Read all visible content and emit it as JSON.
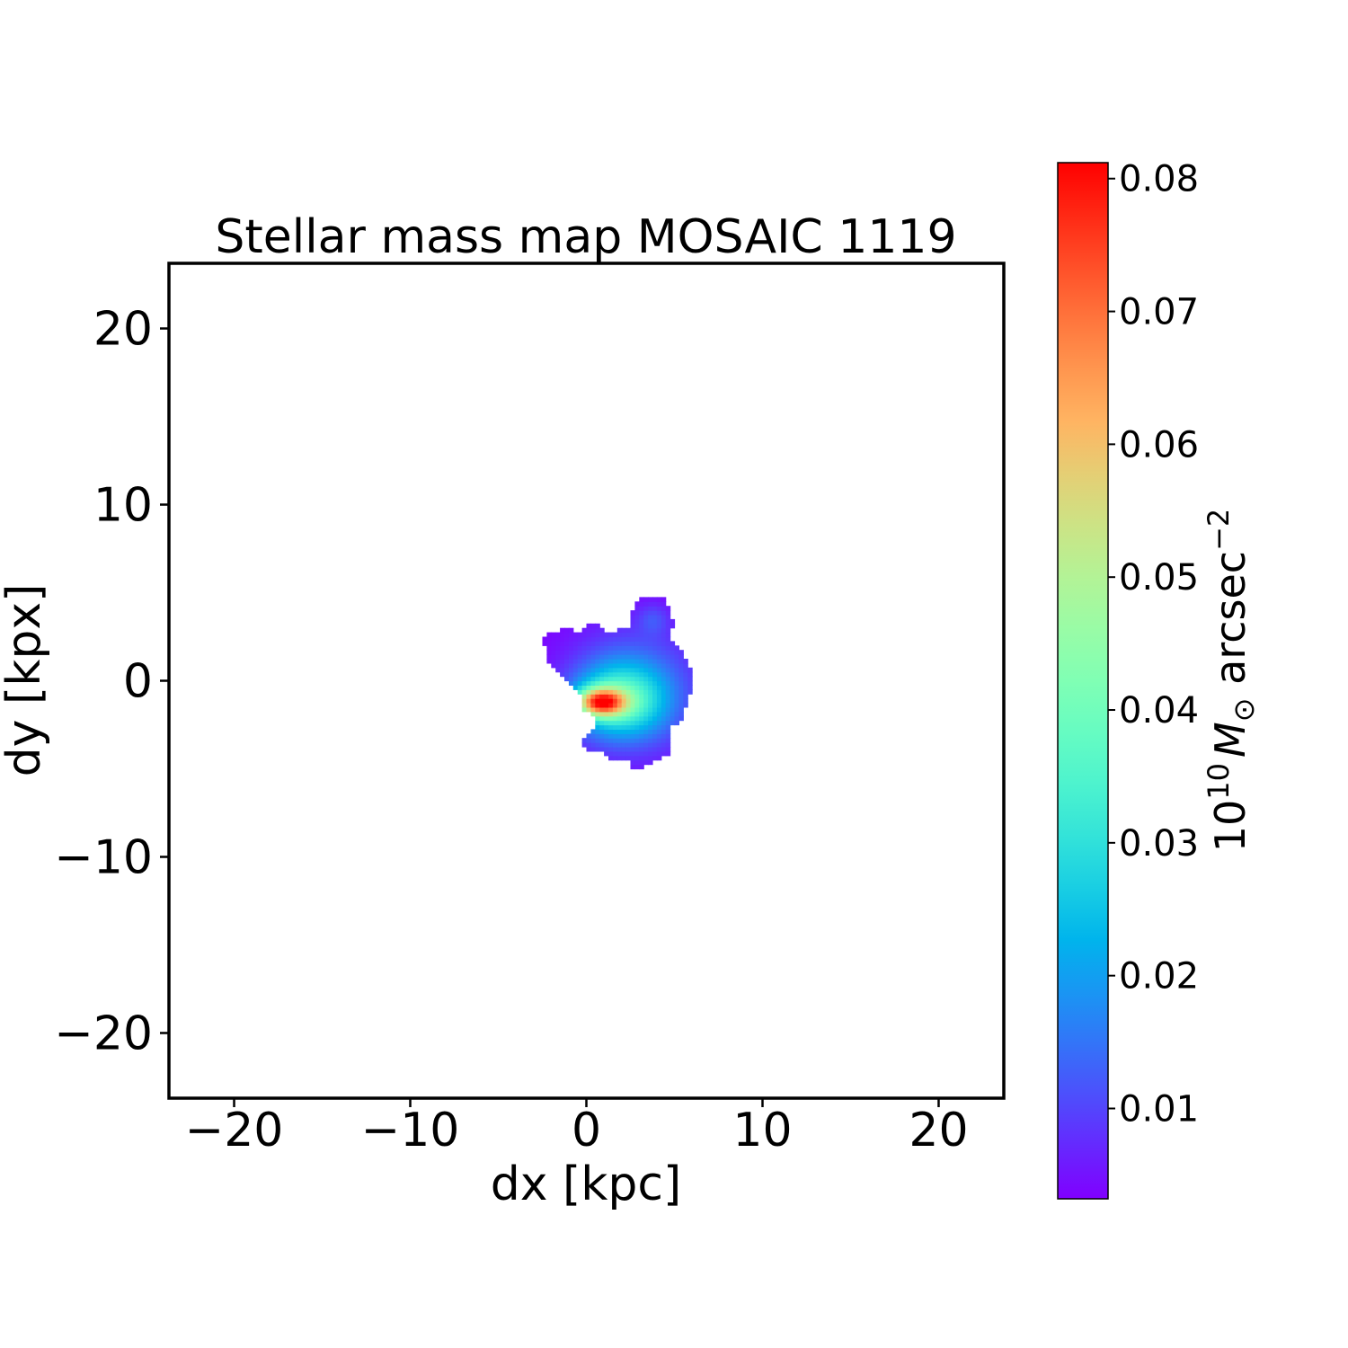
{
  "chart_data": {
    "type": "heatmap",
    "title": "Stellar mass map MOSAIC 1119",
    "xlabel": "dx [kpc]",
    "ylabel": "dy [kpx]",
    "xlim": [
      -23.7,
      23.7
    ],
    "ylim": [
      -23.7,
      23.7
    ],
    "xticks": [
      -20,
      -10,
      0,
      10,
      20
    ],
    "yticks": [
      -20,
      -10,
      0,
      10,
      20
    ],
    "xtick_labels": [
      "−20",
      "−10",
      "0",
      "10",
      "20"
    ],
    "ytick_labels": [
      "−20",
      "−10",
      "0",
      "10",
      "20"
    ],
    "grid": false,
    "colormap": "rainbow",
    "colorbar": {
      "label_base": "10",
      "label_exp": "10",
      "label_symbol": "M",
      "label_sub": "⊙",
      "label_unit": " arcsec",
      "label_unit_exp": "−2",
      "vmin": 0.0032,
      "vmax": 0.0812,
      "ticks": [
        0.01,
        0.02,
        0.03,
        0.04,
        0.05,
        0.06,
        0.07,
        0.08
      ],
      "tick_labels": [
        "0.01",
        "0.02",
        "0.03",
        "0.04",
        "0.05",
        "0.06",
        "0.07",
        "0.08"
      ]
    },
    "pixel_size_kpc": 0.25,
    "peak": {
      "x": 0.8,
      "y": -1.2,
      "value": 0.081
    },
    "secondary_bump": {
      "x": 3.8,
      "y": 3.5,
      "value": 0.012
    },
    "mask_outline_kpc": [
      [
        3.05,
        4.64
      ],
      [
        4.49,
        4.64
      ],
      [
        4.64,
        4.34
      ],
      [
        4.64,
        3.42
      ],
      [
        4.95,
        3.42
      ],
      [
        4.95,
        3.0
      ],
      [
        4.64,
        3.0
      ],
      [
        4.64,
        2.24
      ],
      [
        5.15,
        2.0
      ],
      [
        5.4,
        1.73
      ],
      [
        5.66,
        1.12
      ],
      [
        5.92,
        0.82
      ],
      [
        6.1,
        0.77
      ],
      [
        6.1,
        -0.56
      ],
      [
        5.92,
        -0.82
      ],
      [
        5.66,
        -0.82
      ],
      [
        5.61,
        -1.94
      ],
      [
        5.4,
        -2.19
      ],
      [
        5.15,
        -2.45
      ],
      [
        4.64,
        -2.7
      ],
      [
        4.64,
        -4.13
      ],
      [
        4.44,
        -4.13
      ],
      [
        4.23,
        -4.34
      ],
      [
        3.72,
        -4.59
      ],
      [
        3.21,
        -4.85
      ],
      [
        2.81,
        -5.1
      ],
      [
        2.55,
        -4.85
      ],
      [
        2.35,
        -4.59
      ],
      [
        1.58,
        -4.59
      ],
      [
        1.17,
        -4.34
      ],
      [
        0.92,
        -4.13
      ],
      [
        0.66,
        -3.88
      ],
      [
        0.0,
        -3.88
      ],
      [
        -0.2,
        -3.62
      ],
      [
        -0.2,
        -3.37
      ],
      [
        0.0,
        -3.21
      ],
      [
        0.26,
        -2.91
      ],
      [
        0.41,
        -2.7
      ],
      [
        0.66,
        -2.24
      ],
      [
        0.41,
        -2.04
      ],
      [
        0.0,
        -1.79
      ],
      [
        -0.2,
        -1.53
      ],
      [
        -0.2,
        -0.82
      ],
      [
        -0.51,
        -0.56
      ],
      [
        -0.77,
        -0.31
      ],
      [
        -1.02,
        -0.05
      ],
      [
        -1.28,
        0.2
      ],
      [
        -1.53,
        0.46
      ],
      [
        -1.89,
        0.87
      ],
      [
        -2.24,
        1.12
      ],
      [
        -2.4,
        1.33
      ],
      [
        -2.24,
        1.53
      ],
      [
        -2.24,
        2.04
      ],
      [
        -2.4,
        2.09
      ],
      [
        -2.4,
        2.55
      ],
      [
        -2.14,
        2.75
      ],
      [
        -1.48,
        2.91
      ],
      [
        -1.22,
        3.21
      ],
      [
        -1.02,
        3.0
      ],
      [
        -0.26,
        2.75
      ],
      [
        -0.05,
        3.21
      ],
      [
        0.61,
        3.21
      ],
      [
        0.92,
        2.91
      ],
      [
        1.58,
        2.75
      ],
      [
        1.68,
        2.96
      ],
      [
        2.35,
        2.96
      ],
      [
        2.55,
        3.21
      ],
      [
        2.55,
        3.93
      ],
      [
        2.81,
        4.18
      ],
      [
        2.81,
        4.39
      ],
      [
        3.05,
        4.39
      ]
    ]
  }
}
